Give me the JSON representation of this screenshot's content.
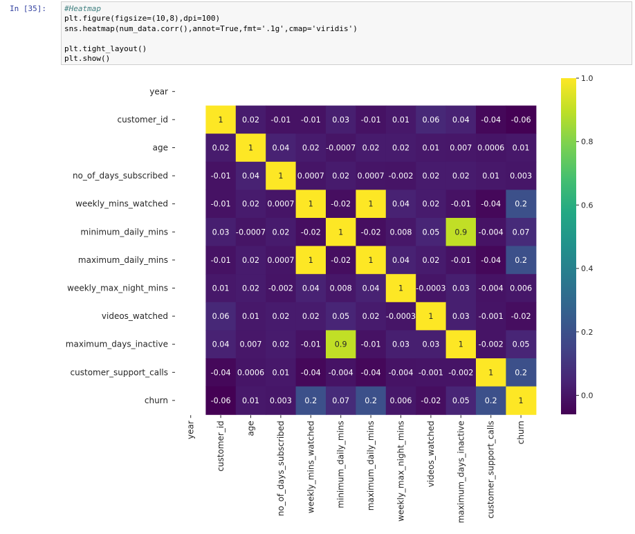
{
  "cell": {
    "prompt": "In [35]:",
    "code_lines": [
      "#Heatmap",
      "plt.figure(figsize=(10,8),dpi=100)",
      "sns.heatmap(num_data.corr(),annot=True,fmt='.1g',cmap='viridis')",
      "",
      "plt.tight_layout()",
      "plt.show()"
    ]
  },
  "chart_data": {
    "type": "heatmap",
    "cmap": "viridis",
    "row_labels": [
      "year",
      "customer_id",
      "age",
      "no_of_days_subscribed",
      "weekly_mins_watched",
      "minimum_daily_mins",
      "maximum_daily_mins",
      "weekly_max_night_mins",
      "videos_watched",
      "maximum_days_inactive",
      "customer_support_calls",
      "churn"
    ],
    "col_labels": [
      "year",
      "customer_id",
      "age",
      "no_of_days_subscribed",
      "weekly_mins_watched",
      "minimum_daily_mins",
      "maximum_daily_mins",
      "weekly_max_night_mins",
      "videos_watched",
      "maximum_days_inactive",
      "customer_support_calls",
      "churn"
    ],
    "values": [
      [
        null,
        null,
        null,
        null,
        null,
        null,
        null,
        null,
        null,
        null,
        null,
        null
      ],
      [
        null,
        1,
        0.02,
        -0.01,
        -0.01,
        0.03,
        -0.01,
        0.01,
        0.06,
        0.04,
        -0.04,
        -0.06
      ],
      [
        null,
        0.02,
        1,
        0.04,
        0.02,
        -0.0007,
        0.02,
        0.02,
        0.01,
        0.007,
        0.0006,
        0.01
      ],
      [
        null,
        -0.01,
        0.04,
        1,
        0.0007,
        0.02,
        0.0007,
        -0.002,
        0.02,
        0.02,
        0.01,
        0.003
      ],
      [
        null,
        -0.01,
        0.02,
        0.0007,
        1,
        -0.02,
        1,
        0.04,
        0.02,
        -0.01,
        -0.04,
        0.2
      ],
      [
        null,
        0.03,
        -0.0007,
        0.02,
        -0.02,
        1,
        -0.02,
        0.008,
        0.05,
        0.9,
        -0.004,
        0.07
      ],
      [
        null,
        -0.01,
        0.02,
        0.0007,
        1,
        -0.02,
        1,
        0.04,
        0.02,
        -0.01,
        -0.04,
        0.2
      ],
      [
        null,
        0.01,
        0.02,
        -0.002,
        0.04,
        0.008,
        0.04,
        1,
        -0.0003,
        0.03,
        -0.004,
        0.006
      ],
      [
        null,
        0.06,
        0.01,
        0.02,
        0.02,
        0.05,
        0.02,
        -0.0003,
        1,
        0.03,
        -0.001,
        -0.02
      ],
      [
        null,
        0.04,
        0.007,
        0.02,
        -0.01,
        0.9,
        -0.01,
        0.03,
        0.03,
        1,
        -0.002,
        0.05
      ],
      [
        null,
        -0.04,
        0.0006,
        0.01,
        -0.04,
        -0.004,
        -0.04,
        -0.004,
        -0.001,
        -0.002,
        1,
        0.2
      ],
      [
        null,
        -0.06,
        0.01,
        0.003,
        0.2,
        0.07,
        0.2,
        0.006,
        -0.02,
        0.05,
        0.2,
        1
      ]
    ],
    "annotations": [
      [
        "",
        "",
        "",
        "",
        "",
        "",
        "",
        "",
        "",
        "",
        "",
        ""
      ],
      [
        "",
        "1",
        "0.02",
        "-0.01",
        "-0.01",
        "0.03",
        "-0.01",
        "0.01",
        "0.06",
        "0.04",
        "-0.04",
        "-0.06"
      ],
      [
        "",
        "0.02",
        "1",
        "0.04",
        "0.02",
        "-0.0007",
        "0.02",
        "0.02",
        "0.01",
        "0.007",
        "0.0006",
        "0.01"
      ],
      [
        "",
        "-0.01",
        "0.04",
        "1",
        "0.0007",
        "0.02",
        "0.0007",
        "-0.002",
        "0.02",
        "0.02",
        "0.01",
        "0.003"
      ],
      [
        "",
        "-0.01",
        "0.02",
        "0.0007",
        "1",
        "-0.02",
        "1",
        "0.04",
        "0.02",
        "-0.01",
        "-0.04",
        "0.2"
      ],
      [
        "",
        "0.03",
        "-0.0007",
        "0.02",
        "-0.02",
        "1",
        "-0.02",
        "0.008",
        "0.05",
        "0.9",
        "-0.004",
        "0.07"
      ],
      [
        "",
        "-0.01",
        "0.02",
        "0.0007",
        "1",
        "-0.02",
        "1",
        "0.04",
        "0.02",
        "-0.01",
        "-0.04",
        "0.2"
      ],
      [
        "",
        "0.01",
        "0.02",
        "-0.002",
        "0.04",
        "0.008",
        "0.04",
        "1",
        "-0.0003",
        "0.03",
        "-0.004",
        "0.006"
      ],
      [
        "",
        "0.06",
        "0.01",
        "0.02",
        "0.02",
        "0.05",
        "0.02",
        "-0.0003",
        "1",
        "0.03",
        "-0.001",
        "-0.02"
      ],
      [
        "",
        "0.04",
        "0.007",
        "0.02",
        "-0.01",
        "0.9",
        "-0.01",
        "0.03",
        "0.03",
        "1",
        "-0.002",
        "0.05"
      ],
      [
        "",
        "-0.04",
        "0.0006",
        "0.01",
        "-0.04",
        "-0.004",
        "-0.04",
        "-0.004",
        "-0.001",
        "-0.002",
        "1",
        "0.2"
      ],
      [
        "",
        "-0.06",
        "0.01",
        "0.003",
        "0.2",
        "0.07",
        "0.2",
        "0.006",
        "-0.02",
        "0.05",
        "0.2",
        "1"
      ]
    ],
    "colorbar": {
      "range": [
        -0.06,
        1.0
      ],
      "ticks": [
        1.0,
        0.8,
        0.6,
        0.4,
        0.2,
        0.0
      ],
      "tick_labels": [
        "1.0",
        "0.8",
        "0.6",
        "0.4",
        "0.2",
        "0.0"
      ]
    },
    "title": "",
    "xlabel": "",
    "ylabel": ""
  }
}
